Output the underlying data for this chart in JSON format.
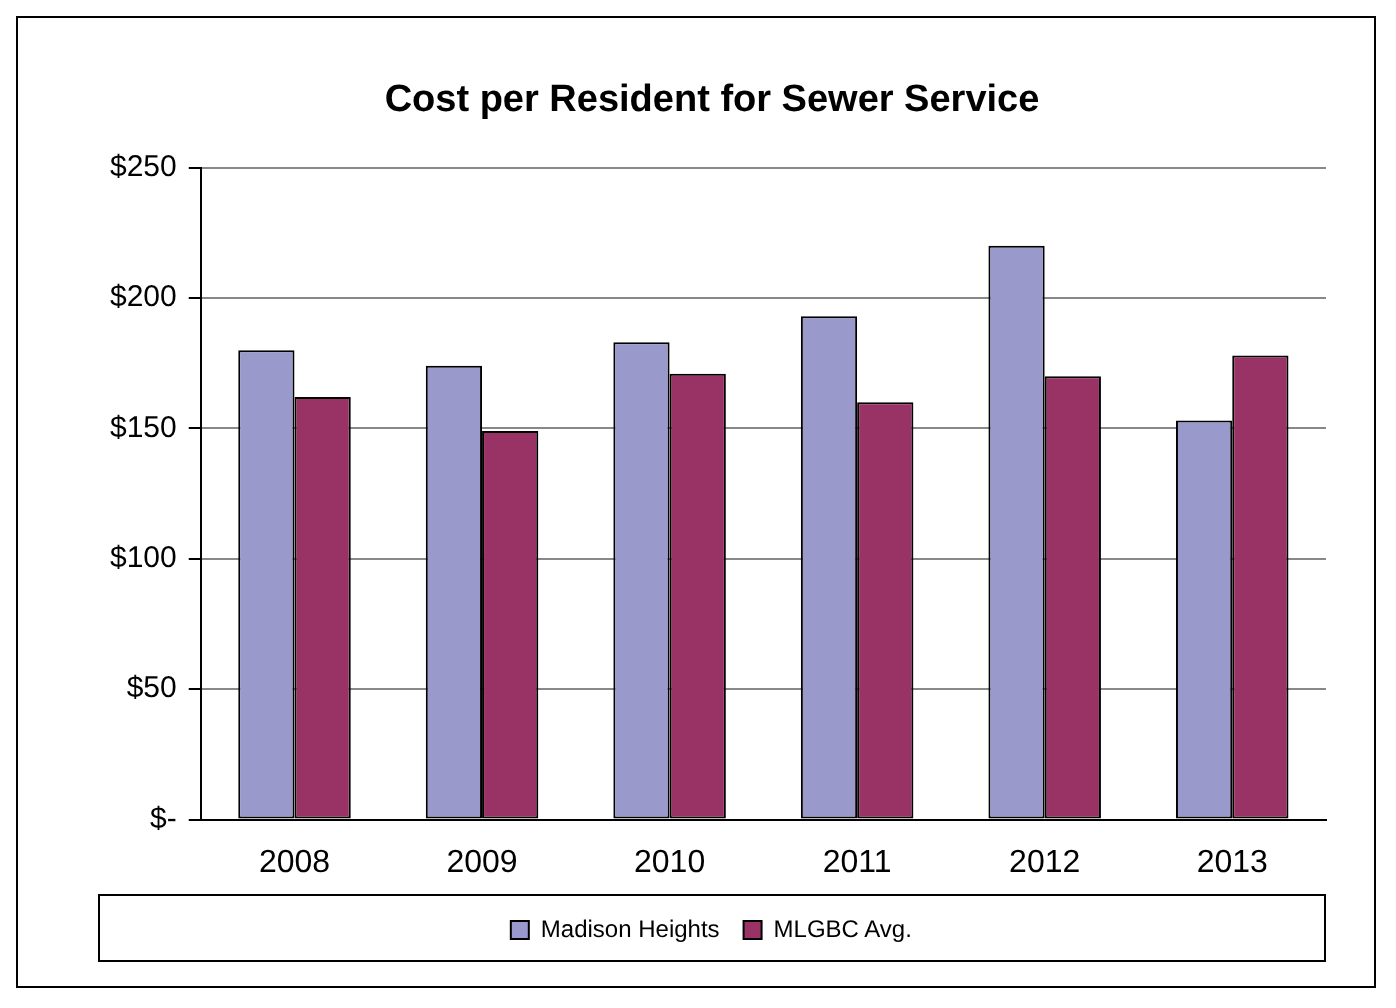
{
  "chart_data": {
    "type": "bar",
    "title": "Cost per Resident for Sewer Service",
    "categories": [
      "2008",
      "2009",
      "2010",
      "2011",
      "2012",
      "2013"
    ],
    "series": [
      {
        "name": "Madison Heights",
        "color": "#9999cc",
        "values": [
          180,
          174,
          183,
          193,
          220,
          153
        ]
      },
      {
        "name": "MLGBC Avg.",
        "color": "#993366",
        "values": [
          162,
          149,
          171,
          160,
          170,
          178
        ]
      }
    ],
    "ylim": [
      0,
      250
    ],
    "yticks": [
      {
        "value": 0,
        "label": "$-"
      },
      {
        "value": 50,
        "label": "$50"
      },
      {
        "value": 100,
        "label": "$100"
      },
      {
        "value": 150,
        "label": "$150"
      },
      {
        "value": 200,
        "label": "$200"
      },
      {
        "value": 250,
        "label": "$250"
      }
    ],
    "grid": "y",
    "legend": "bottom"
  }
}
